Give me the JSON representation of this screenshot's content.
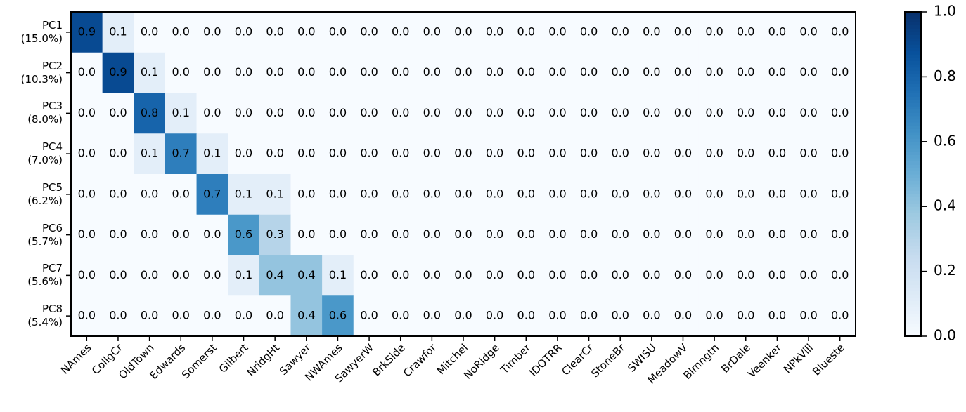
{
  "chart_data": {
    "type": "heatmap",
    "colormap": "Blues",
    "x_categories": [
      "NAmes",
      "CollgCr",
      "OldTown",
      "Edwards",
      "Somerst",
      "Gilbert",
      "NridgHt",
      "Sawyer",
      "NWAmes",
      "SawyerW",
      "BrkSide",
      "Crawfor",
      "Mitchel",
      "NoRidge",
      "Timber",
      "IDOTRR",
      "ClearCr",
      "StoneBr",
      "SWISU",
      "MeadowV",
      "Blmngtn",
      "BrDale",
      "Veenker",
      "NPkVill",
      "Blueste"
    ],
    "y_categories": [
      "PC1\n(15.0%)",
      "PC2\n(10.3%)",
      "PC3\n(8.0%)",
      "PC4\n(7.0%)",
      "PC5\n(6.2%)",
      "PC6\n(5.7%)",
      "PC7\n(5.6%)",
      "PC8\n(5.4%)"
    ],
    "values": [
      [
        0.9,
        0.1,
        0,
        0,
        0,
        0,
        0,
        0,
        0,
        0,
        0,
        0,
        0,
        0,
        0,
        0,
        0,
        0,
        0,
        0,
        0,
        0,
        0,
        0,
        0
      ],
      [
        0,
        0.9,
        0.1,
        0,
        0,
        0,
        0,
        0,
        0,
        0,
        0,
        0,
        0,
        0,
        0,
        0,
        0,
        0,
        0,
        0,
        0,
        0,
        0,
        0,
        0
      ],
      [
        0,
        0,
        0.8,
        0.1,
        0,
        0,
        0,
        0,
        0,
        0,
        0,
        0,
        0,
        0,
        0,
        0,
        0,
        0,
        0,
        0,
        0,
        0,
        0,
        0,
        0
      ],
      [
        0,
        0,
        0.1,
        0.7,
        0.1,
        0,
        0,
        0,
        0,
        0,
        0,
        0,
        0,
        0,
        0,
        0,
        0,
        0,
        0,
        0,
        0,
        0,
        0,
        0,
        0
      ],
      [
        0,
        0,
        0,
        0,
        0.7,
        0.1,
        0.1,
        0,
        0,
        0,
        0,
        0,
        0,
        0,
        0,
        0,
        0,
        0,
        0,
        0,
        0,
        0,
        0,
        0,
        0
      ],
      [
        0,
        0,
        0,
        0,
        0,
        0.6,
        0.3,
        0,
        0,
        0,
        0,
        0,
        0,
        0,
        0,
        0,
        0,
        0,
        0,
        0,
        0,
        0,
        0,
        0,
        0
      ],
      [
        0,
        0,
        0,
        0,
        0,
        0.1,
        0.4,
        0.4,
        0.1,
        0,
        0,
        0,
        0,
        0,
        0,
        0,
        0,
        0,
        0,
        0,
        0,
        0,
        0,
        0,
        0
      ],
      [
        0,
        0,
        0,
        0,
        0,
        0,
        0,
        0.4,
        0.6,
        0,
        0,
        0,
        0,
        0,
        0,
        0,
        0,
        0,
        0,
        0,
        0,
        0,
        0,
        0,
        0
      ]
    ],
    "value_labels": [
      [
        "0.9",
        "0.1",
        "0.0",
        "0.0",
        "0.0",
        "0.0",
        "0.0",
        "0.0",
        "0.0",
        "0.0",
        "0.0",
        "0.0",
        "0.0",
        "0.0",
        "0.0",
        "0.0",
        "0.0",
        "0.0",
        "0.0",
        "0.0",
        "0.0",
        "0.0",
        "0.0",
        "0.0",
        "0.0"
      ],
      [
        "0.0",
        "0.9",
        "0.1",
        "0.0",
        "0.0",
        "0.0",
        "0.0",
        "0.0",
        "0.0",
        "0.0",
        "0.0",
        "0.0",
        "0.0",
        "0.0",
        "0.0",
        "0.0",
        "0.0",
        "0.0",
        "0.0",
        "0.0",
        "0.0",
        "0.0",
        "0.0",
        "0.0",
        "0.0"
      ],
      [
        "0.0",
        "0.0",
        "0.8",
        "0.1",
        "0.0",
        "0.0",
        "0.0",
        "0.0",
        "0.0",
        "0.0",
        "0.0",
        "0.0",
        "0.0",
        "0.0",
        "0.0",
        "0.0",
        "0.0",
        "0.0",
        "0.0",
        "0.0",
        "0.0",
        "0.0",
        "0.0",
        "0.0",
        "0.0"
      ],
      [
        "0.0",
        "0.0",
        "0.1",
        "0.7",
        "0.1",
        "0.0",
        "0.0",
        "0.0",
        "0.0",
        "0.0",
        "0.0",
        "0.0",
        "0.0",
        "0.0",
        "0.0",
        "0.0",
        "0.0",
        "0.0",
        "0.0",
        "0.0",
        "0.0",
        "0.0",
        "0.0",
        "0.0",
        "0.0"
      ],
      [
        "0.0",
        "0.0",
        "0.0",
        "0.0",
        "0.7",
        "0.1",
        "0.1",
        "0.0",
        "0.0",
        "0.0",
        "0.0",
        "0.0",
        "0.0",
        "0.0",
        "0.0",
        "0.0",
        "0.0",
        "0.0",
        "0.0",
        "0.0",
        "0.0",
        "0.0",
        "0.0",
        "0.0",
        "0.0"
      ],
      [
        "0.0",
        "0.0",
        "0.0",
        "0.0",
        "0.0",
        "0.6",
        "0.3",
        "0.0",
        "0.0",
        "0.0",
        "0.0",
        "0.0",
        "0.0",
        "0.0",
        "0.0",
        "0.0",
        "0.0",
        "0.0",
        "0.0",
        "0.0",
        "0.0",
        "0.0",
        "0.0",
        "0.0",
        "0.0"
      ],
      [
        "0.0",
        "0.0",
        "0.0",
        "0.0",
        "0.0",
        "0.1",
        "0.4",
        "0.4",
        "0.1",
        "0.0",
        "0.0",
        "0.0",
        "0.0",
        "0.0",
        "0.0",
        "0.0",
        "0.0",
        "0.0",
        "0.0",
        "0.0",
        "0.0",
        "0.0",
        "0.0",
        "0.0",
        "0.0"
      ],
      [
        "0.0",
        "0.0",
        "0.0",
        "0.0",
        "0.0",
        "0.0",
        "0.0",
        "0.4",
        "0.6",
        "0.0",
        "0.0",
        "0.0",
        "0.0",
        "0.0",
        "0.0",
        "0.0",
        "0.0",
        "0.0",
        "0.0",
        "0.0",
        "0.0",
        "0.0",
        "0.0",
        "0.0",
        "0.0"
      ]
    ],
    "clim": [
      0,
      1
    ],
    "cticks": [
      {
        "value": 0,
        "label": "0.0"
      },
      0.2,
      0.4,
      0.6,
      0.8,
      {
        "value": 1,
        "label": "1.0"
      }
    ]
  }
}
